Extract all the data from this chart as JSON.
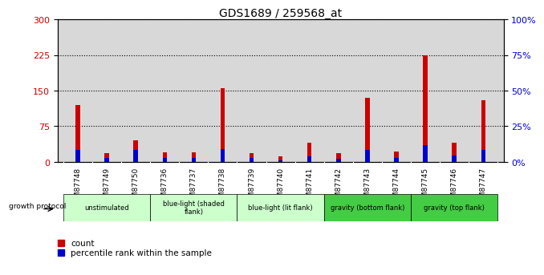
{
  "title": "GDS1689 / 259568_at",
  "samples": [
    "GSM87748",
    "GSM87749",
    "GSM87750",
    "GSM87736",
    "GSM87737",
    "GSM87738",
    "GSM87739",
    "GSM87740",
    "GSM87741",
    "GSM87742",
    "GSM87743",
    "GSM87744",
    "GSM87745",
    "GSM87746",
    "GSM87747"
  ],
  "count_values": [
    120,
    18,
    45,
    20,
    20,
    155,
    18,
    12,
    40,
    18,
    135,
    22,
    225,
    40,
    130
  ],
  "percentile_values": [
    25,
    8,
    25,
    8,
    8,
    27,
    8,
    4,
    12,
    6,
    26,
    8,
    35,
    14,
    26
  ],
  "ylim_left": [
    0,
    300
  ],
  "ylim_right": [
    0,
    100
  ],
  "yticks_left": [
    0,
    75,
    150,
    225,
    300
  ],
  "yticks_right": [
    0,
    25,
    50,
    75,
    100
  ],
  "ytick_labels_right": [
    "0%",
    "25%",
    "50%",
    "75%",
    "100%"
  ],
  "bar_color_red": "#cc0000",
  "bar_color_blue": "#0000cc",
  "background_color": "#d8d8d8",
  "bar_width": 0.15,
  "groups": [
    {
      "label": "unstimulated",
      "indices": [
        0,
        1,
        2
      ],
      "color": "#ccffcc"
    },
    {
      "label": "blue-light (shaded\nflank)",
      "indices": [
        3,
        4,
        5
      ],
      "color": "#ccffcc"
    },
    {
      "label": "blue-light (lit flank)",
      "indices": [
        6,
        7,
        8
      ],
      "color": "#ccffcc"
    },
    {
      "label": "gravity (bottom flank)",
      "indices": [
        9,
        10,
        11
      ],
      "color": "#44cc44"
    },
    {
      "label": "gravity (top flank)",
      "indices": [
        12,
        13,
        14
      ],
      "color": "#44cc44"
    }
  ]
}
